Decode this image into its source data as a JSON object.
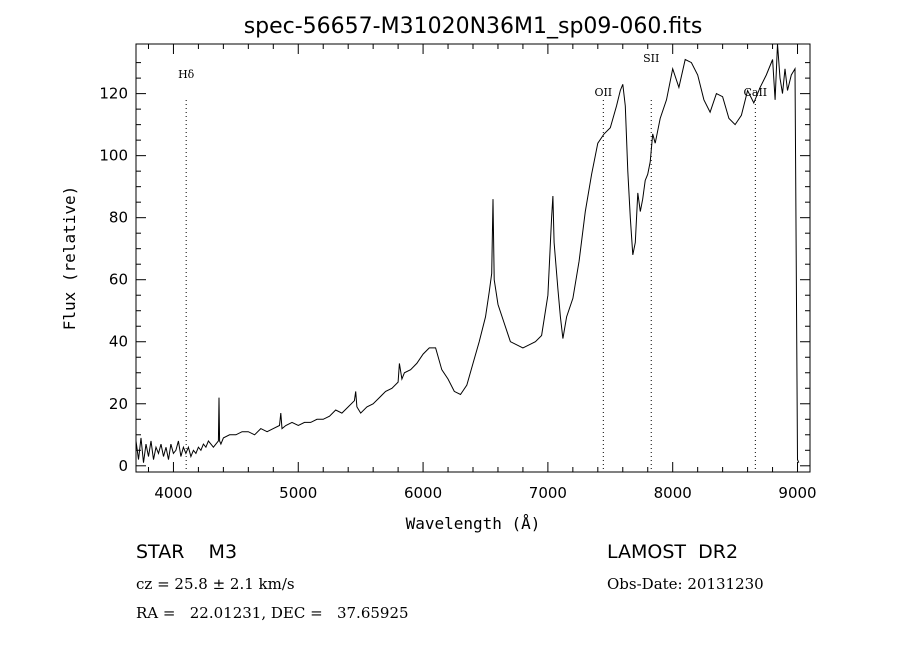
{
  "chart_data": {
    "type": "line",
    "title": "spec-56657-M31020N36M1_sp09-060.fits",
    "xlabel": "Wavelength (Å)",
    "ylabel": "Flux (relative)",
    "xlim": [
      3700,
      9100
    ],
    "ylim": [
      -2,
      136
    ],
    "x_ticks": [
      4000,
      5000,
      6000,
      7000,
      8000,
      9000
    ],
    "y_ticks": [
      0,
      20,
      40,
      60,
      80,
      100,
      120
    ],
    "grid": false,
    "line_color": "#000000",
    "series": [
      {
        "x": [
          3700,
          3720,
          3740,
          3760,
          3780,
          3800,
          3820,
          3840,
          3860,
          3880,
          3900,
          3920,
          3940,
          3960,
          3980,
          4000,
          4020,
          4040,
          4060,
          4080,
          4100,
          4120,
          4140,
          4160,
          4180,
          4200,
          4220,
          4240,
          4260,
          4280,
          4300,
          4320,
          4340,
          4360,
          4365,
          4370,
          4380,
          4400,
          4450,
          4500,
          4550,
          4600,
          4650,
          4700,
          4750,
          4800,
          4850,
          4860,
          4870,
          4900,
          4950,
          5000,
          5050,
          5100,
          5150,
          5200,
          5250,
          5300,
          5350,
          5400,
          5450,
          5460,
          5470,
          5500,
          5550,
          5600,
          5650,
          5700,
          5750,
          5800,
          5810,
          5830,
          5850,
          5900,
          5950,
          6000,
          6050,
          6100,
          6150,
          6200,
          6250,
          6300,
          6350,
          6400,
          6450,
          6500,
          6530,
          6550,
          6560,
          6570,
          6600,
          6650,
          6700,
          6750,
          6800,
          6850,
          6900,
          6950,
          7000,
          7030,
          7040,
          7050,
          7080,
          7100,
          7120,
          7150,
          7200,
          7250,
          7300,
          7350,
          7400,
          7450,
          7500,
          7550,
          7580,
          7600,
          7620,
          7640,
          7660,
          7680,
          7700,
          7720,
          7740,
          7760,
          7780,
          7800,
          7820,
          7840,
          7860,
          7880,
          7900,
          7950,
          8000,
          8050,
          8100,
          8150,
          8200,
          8250,
          8300,
          8350,
          8400,
          8450,
          8500,
          8550,
          8600,
          8650,
          8700,
          8750,
          8800,
          8820,
          8840,
          8860,
          8880,
          8900,
          8920,
          8950,
          8980,
          9000,
          9010
        ],
        "values": [
          8,
          2,
          9,
          1,
          7,
          3,
          8,
          2,
          6,
          4,
          7,
          3,
          6,
          2,
          7,
          4,
          5,
          8,
          3,
          6,
          4,
          6,
          3,
          5,
          4,
          6,
          5,
          7,
          6,
          8,
          7,
          6,
          7,
          8,
          22,
          8,
          7,
          9,
          10,
          10,
          11,
          11,
          10,
          12,
          11,
          12,
          13,
          17,
          12,
          13,
          14,
          13,
          14,
          14,
          15,
          15,
          16,
          18,
          17,
          19,
          21,
          24,
          19,
          17,
          19,
          20,
          22,
          24,
          25,
          27,
          33,
          28,
          30,
          31,
          33,
          36,
          38,
          38,
          31,
          28,
          24,
          23,
          26,
          33,
          40,
          48,
          56,
          62,
          86,
          60,
          52,
          46,
          40,
          39,
          38,
          39,
          40,
          42,
          55,
          80,
          87,
          72,
          57,
          48,
          41,
          48,
          54,
          66,
          82,
          94,
          104,
          107,
          109,
          116,
          121,
          123,
          116,
          95,
          80,
          68,
          72,
          88,
          82,
          86,
          92,
          94,
          98,
          107,
          104,
          108,
          112,
          118,
          128,
          122,
          131,
          130,
          126,
          118,
          114,
          120,
          119,
          112,
          110,
          113,
          121,
          117,
          122,
          126,
          131,
          118,
          136,
          125,
          120,
          128,
          121,
          126,
          128,
          2,
          1
        ]
      }
    ],
    "annotations": [
      {
        "label": "Hδ",
        "x": 4102
      },
      {
        "label": "OII",
        "x": 7444
      },
      {
        "label": "SII",
        "x": 7828
      },
      {
        "label": "CaII",
        "x": 8662
      }
    ]
  },
  "info": {
    "object_class": "STAR    M3",
    "survey": "LAMOST  DR2",
    "cz": "cz = 25.8 ± 2.1 km/s",
    "obs_date": "Obs-Date: 20131230",
    "coords": "RA =   22.01231, DEC =   37.65925"
  }
}
